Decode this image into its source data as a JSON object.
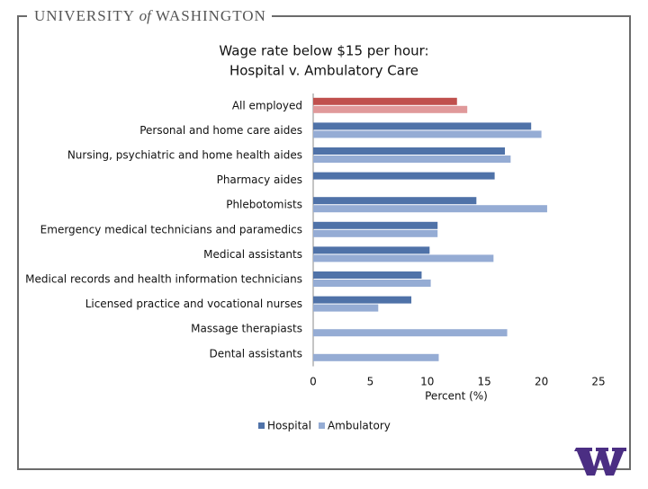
{
  "header": {
    "university": "UNIVERSITY",
    "of": "of",
    "washington": "WASHINGTON"
  },
  "chart_data": {
    "type": "hbar",
    "title": [
      "Wage rate below $15 per hour:",
      "Hospital v. Ambulatory Care"
    ],
    "xlabel": "Percent (%)",
    "categories": [
      "All employed",
      "Personal and home care aides",
      "Nursing, psychiatric and home health aides",
      "Pharmacy aides",
      "Phlebotomists",
      "Emergency medical technicians and paramedics",
      "Medical assistants",
      "Medical records and health information technicians",
      "Licensed practice and vocational nurses",
      "Massage therapiasts",
      "Dental assistants"
    ],
    "series": [
      {
        "name": "Hospital",
        "color": "#4f72a8",
        "colors": [
          "#c0504d",
          "#4f72a8",
          "#4f72a8",
          "#4f72a8",
          "#4f72a8",
          "#4f72a8",
          "#4f72a8",
          "#4f72a8",
          "#4f72a8",
          "#4f72a8",
          "#4f72a8"
        ],
        "values": [
          12.6,
          19.1,
          16.8,
          15.9,
          14.3,
          10.9,
          10.2,
          9.5,
          8.6,
          null,
          null
        ]
      },
      {
        "name": "Ambulatory",
        "color": "#95acd4",
        "colors": [
          "#e0999a",
          "#95acd4",
          "#95acd4",
          "#95acd4",
          "#95acd4",
          "#95acd4",
          "#95acd4",
          "#95acd4",
          "#95acd4",
          "#95acd4",
          "#95acd4"
        ],
        "values": [
          13.5,
          20.0,
          17.3,
          null,
          20.5,
          10.9,
          15.8,
          10.3,
          5.7,
          17.0,
          11.0
        ]
      }
    ],
    "xlim": [
      0,
      25
    ],
    "xticks": [
      0,
      5,
      10,
      15,
      20,
      25
    ],
    "legend": "bottom"
  }
}
